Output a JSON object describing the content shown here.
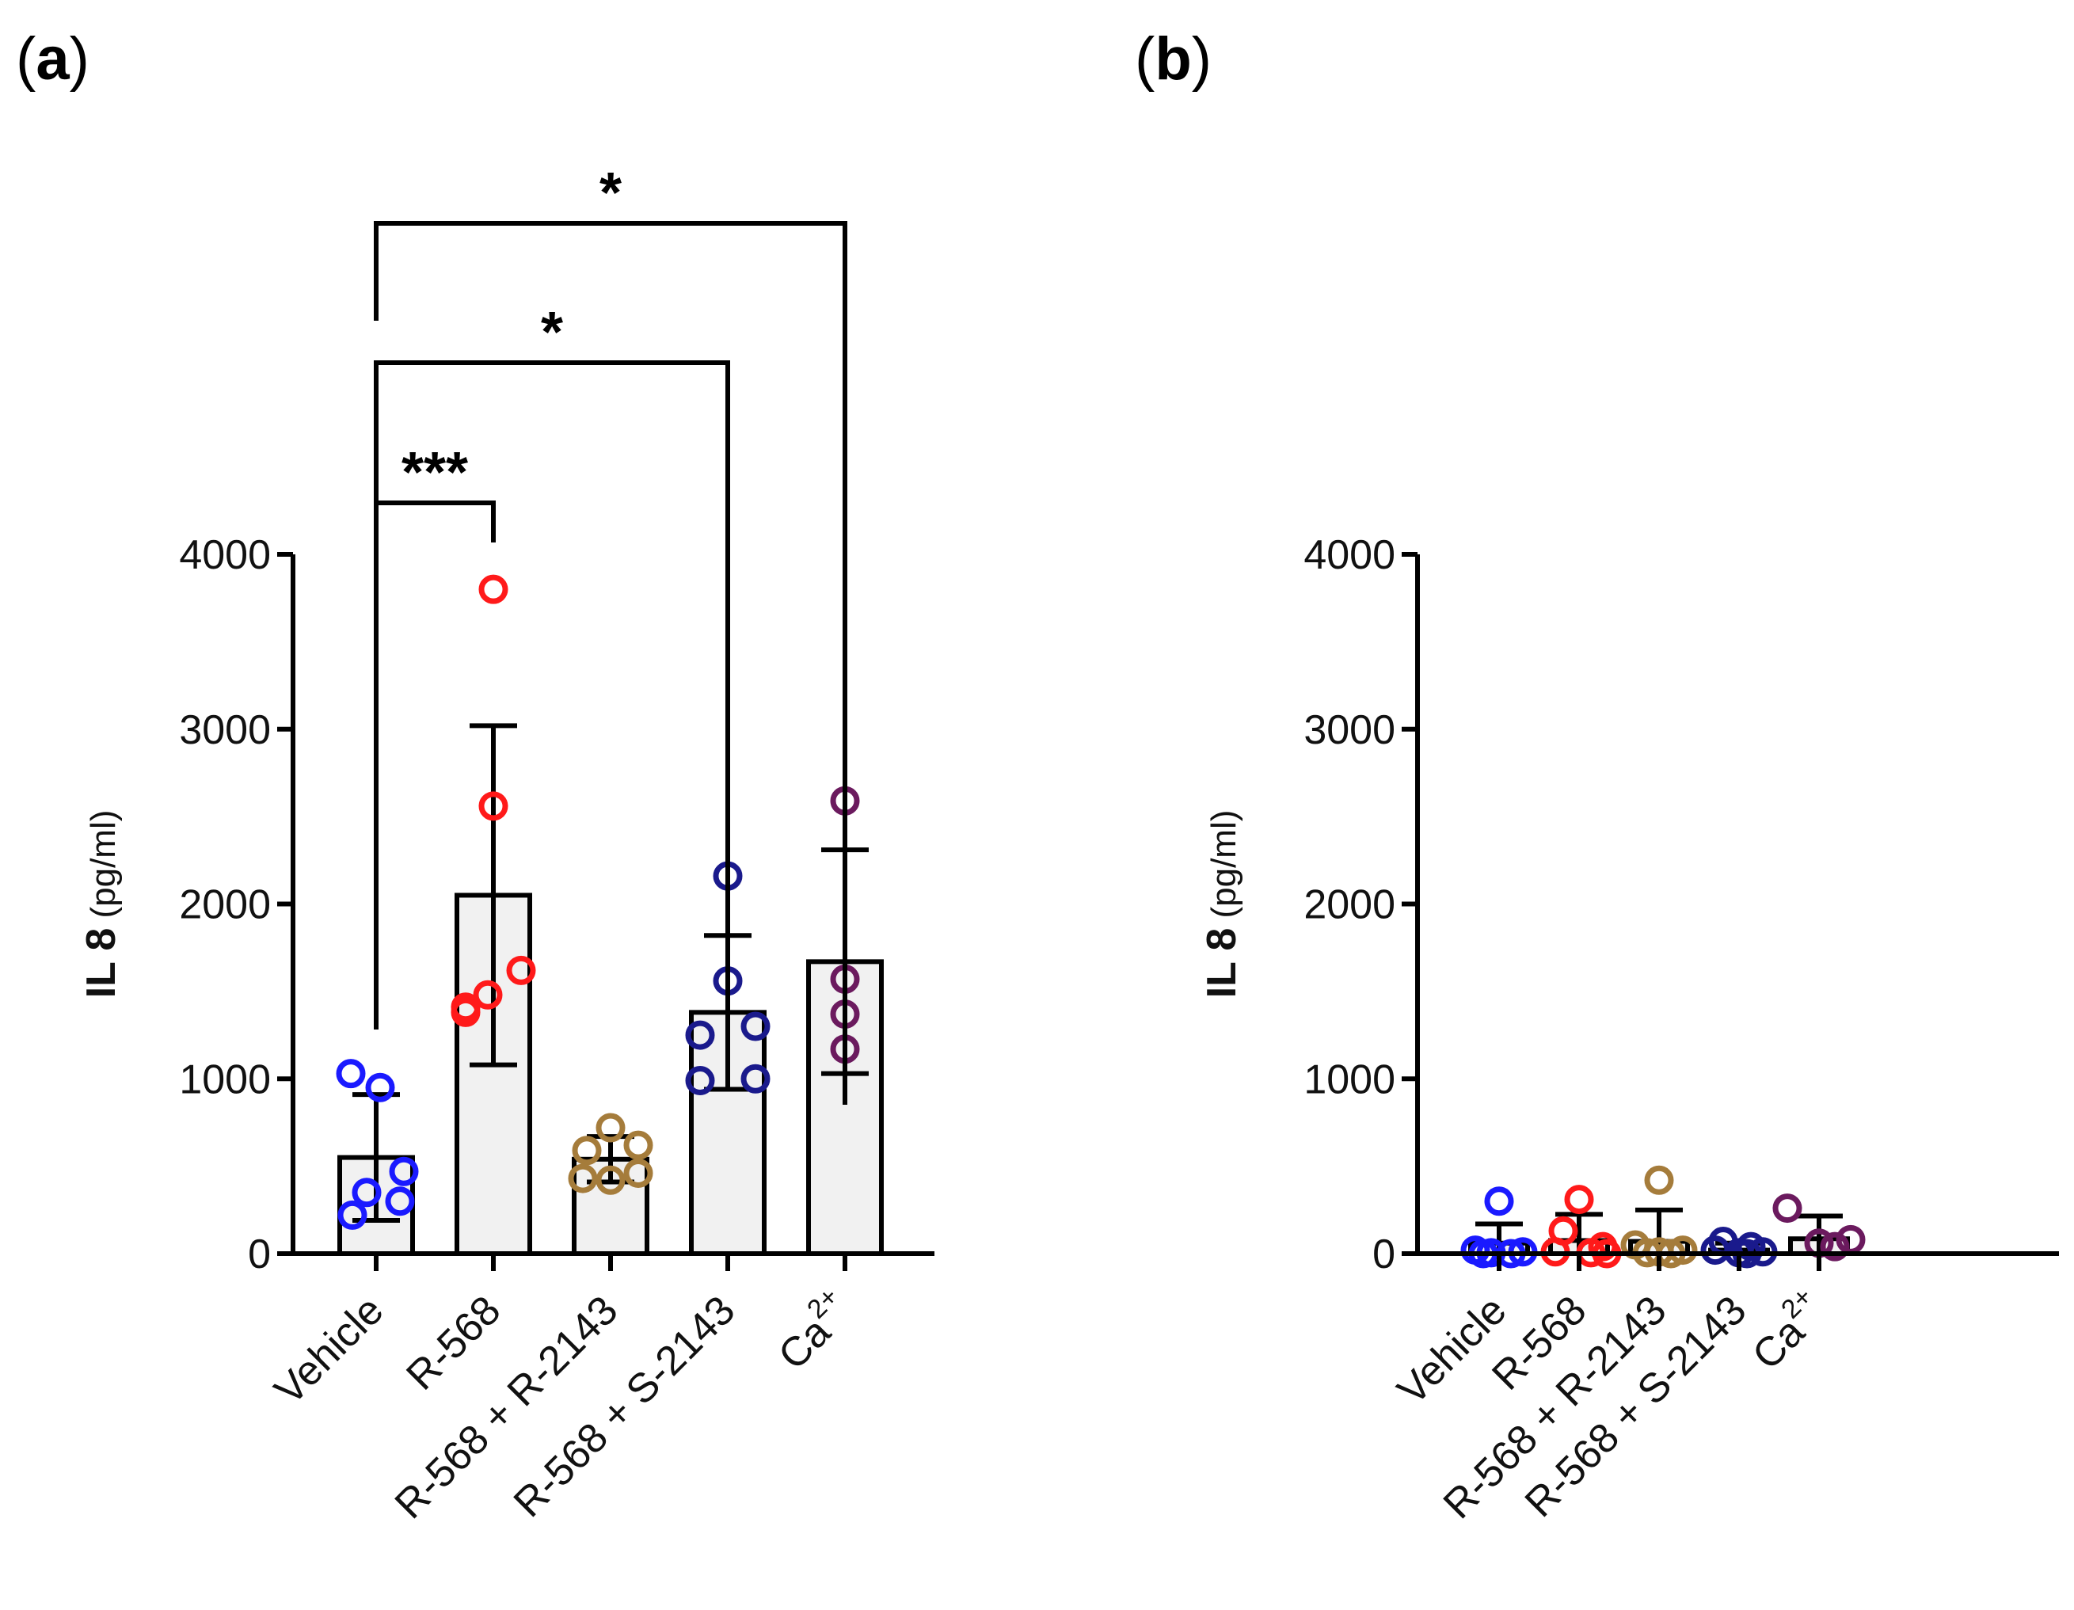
{
  "chart_data": [
    {
      "panel": "(a)",
      "type": "bar",
      "ylabel_bold": "IL 8",
      "ylabel_unit": "(pg/ml)",
      "ylim": [
        0,
        4000
      ],
      "yticks": [
        "0",
        "1000",
        "2000",
        "3000",
        "4000"
      ],
      "categories": [
        "Vehicle",
        "R-568",
        "R-568 + R-2143",
        "R-568 + S-2143",
        "Ca"
      ],
      "category_superscripts": [
        "",
        "",
        "",
        "",
        "2+"
      ],
      "colors": [
        "#1a1aff",
        "#ff1a1a",
        "#a57c3b",
        "#1a1a8c",
        "#6b1a5e"
      ],
      "means": [
        550,
        2050,
        540,
        1380,
        1670
      ],
      "sd": [
        360,
        970,
        130,
        440,
        640
      ],
      "points": [
        [
          1030,
          950,
          470,
          350,
          300,
          220
        ],
        [
          3800,
          2560,
          1620,
          1480,
          1410,
          1380
        ],
        [
          720,
          620,
          590,
          460,
          430,
          420
        ],
        [
          2160,
          1560,
          1300,
          1250,
          1000,
          990
        ],
        [
          2590,
          1570,
          1370,
          1170
        ]
      ],
      "significance": [
        {
          "from": "Vehicle",
          "to": "R-568",
          "label": "***"
        },
        {
          "from": "Vehicle",
          "to": "R-568 + S-2143",
          "label": "*"
        },
        {
          "from": "Vehicle",
          "to": "Ca",
          "label": "*"
        }
      ]
    },
    {
      "panel": "(b)",
      "type": "bar",
      "ylabel_bold": "IL 8",
      "ylabel_unit": "(pg/ml)",
      "ylim": [
        0,
        4000
      ],
      "yticks": [
        "0",
        "1000",
        "2000",
        "3000",
        "4000"
      ],
      "categories": [
        "Vehicle",
        "R-568",
        "R-568 + R-2143",
        "R-568 + S-2143",
        "Ca"
      ],
      "category_superscripts": [
        "",
        "",
        "",
        "",
        "2+"
      ],
      "colors": [
        "#1a1aff",
        "#ff1a1a",
        "#a57c3b",
        "#1a1a8c",
        "#6b1a5e"
      ],
      "means": [
        60,
        75,
        70,
        20,
        85
      ],
      "sd": [
        110,
        150,
        180,
        40,
        130
      ],
      "points": [
        [
          300,
          20,
          10,
          5,
          0,
          0
        ],
        [
          310,
          130,
          40,
          10,
          5,
          0
        ],
        [
          420,
          50,
          20,
          10,
          5,
          0
        ],
        [
          70,
          40,
          20,
          10,
          5,
          0
        ],
        [
          260,
          80,
          60,
          40
        ]
      ],
      "significance": []
    }
  ]
}
